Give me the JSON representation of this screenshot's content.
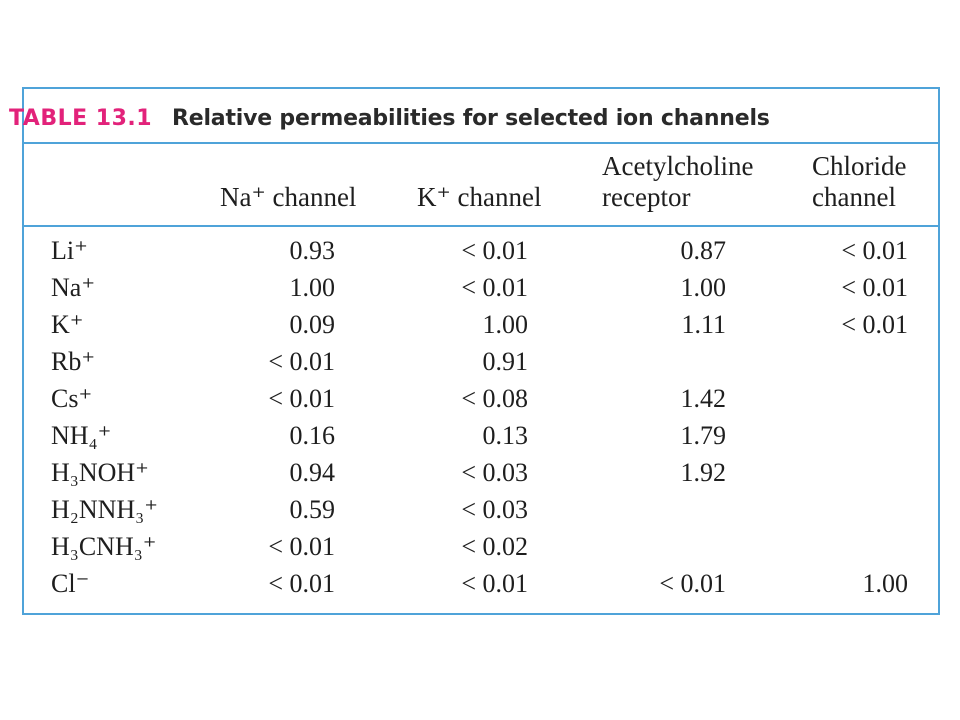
{
  "table": {
    "label": "TABLE 13.1",
    "caption": "Relative permeabilities for selected ion channels",
    "columns": [
      {
        "line1": "",
        "line2": "Na⁺ channel"
      },
      {
        "line1": "",
        "line2": "K⁺ channel"
      },
      {
        "line1": "Acetylcholine",
        "line2": "receptor"
      },
      {
        "line1": "Chloride",
        "line2": "channel"
      }
    ],
    "rows": [
      {
        "ion": "Li⁺",
        "values": [
          "0.93",
          "< 0.01",
          "0.87",
          "< 0.01"
        ]
      },
      {
        "ion": "Na⁺",
        "values": [
          "1.00",
          "< 0.01",
          "1.00",
          "< 0.01"
        ]
      },
      {
        "ion": "K⁺",
        "values": [
          "0.09",
          "1.00",
          "1.11",
          "< 0.01"
        ]
      },
      {
        "ion": "Rb⁺",
        "values": [
          "< 0.01",
          "0.91",
          "",
          ""
        ]
      },
      {
        "ion": "Cs⁺",
        "values": [
          "< 0.01",
          "< 0.08",
          "1.42",
          ""
        ]
      },
      {
        "ion": "NH₄⁺",
        "values": [
          "0.16",
          "0.13",
          "1.79",
          ""
        ]
      },
      {
        "ion": "H₃NOH⁺",
        "values": [
          "0.94",
          "< 0.03",
          "1.92",
          ""
        ]
      },
      {
        "ion": "H₂NNH₃⁺",
        "values": [
          "0.59",
          "< 0.03",
          "",
          ""
        ]
      },
      {
        "ion": "H₃CNH₃⁺",
        "values": [
          "< 0.01",
          "< 0.02",
          "",
          ""
        ]
      },
      {
        "ion": "Cl⁻",
        "values": [
          "< 0.01",
          "< 0.01",
          "< 0.01",
          "1.00"
        ]
      }
    ]
  },
  "colors": {
    "border": "#4fa3d9",
    "label": "#e2227a",
    "text": "#1e1e1e"
  }
}
